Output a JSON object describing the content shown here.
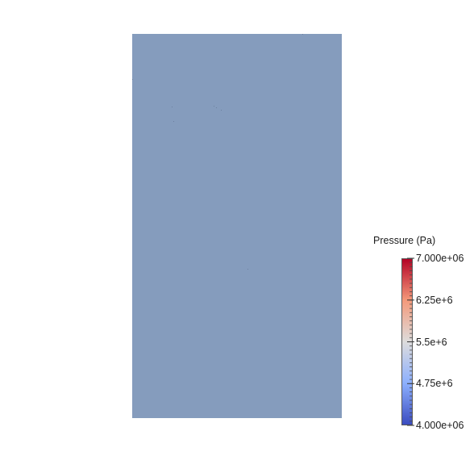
{
  "scene": {
    "background_color": "#ffffff",
    "field_color": "#859cbd"
  },
  "legend": {
    "title": "Pressure (Pa)",
    "colormap": "cool-to-warm",
    "colors": {
      "min": "#3b4cc0",
      "low_mid": "#8db0fe",
      "mid": "#dddcdc",
      "high_mid": "#f49a7b",
      "max": "#b40426"
    },
    "range": [
      4000000,
      7000000
    ],
    "labels": [
      {
        "value": 7000000,
        "text": "7.000e+06"
      },
      {
        "value": 6250000,
        "text": "6.25e+6"
      },
      {
        "value": 5500000,
        "text": "5.5e+6"
      },
      {
        "value": 4750000,
        "text": "4.75e+6"
      },
      {
        "value": 4000000,
        "text": "4.000e+06"
      }
    ]
  }
}
